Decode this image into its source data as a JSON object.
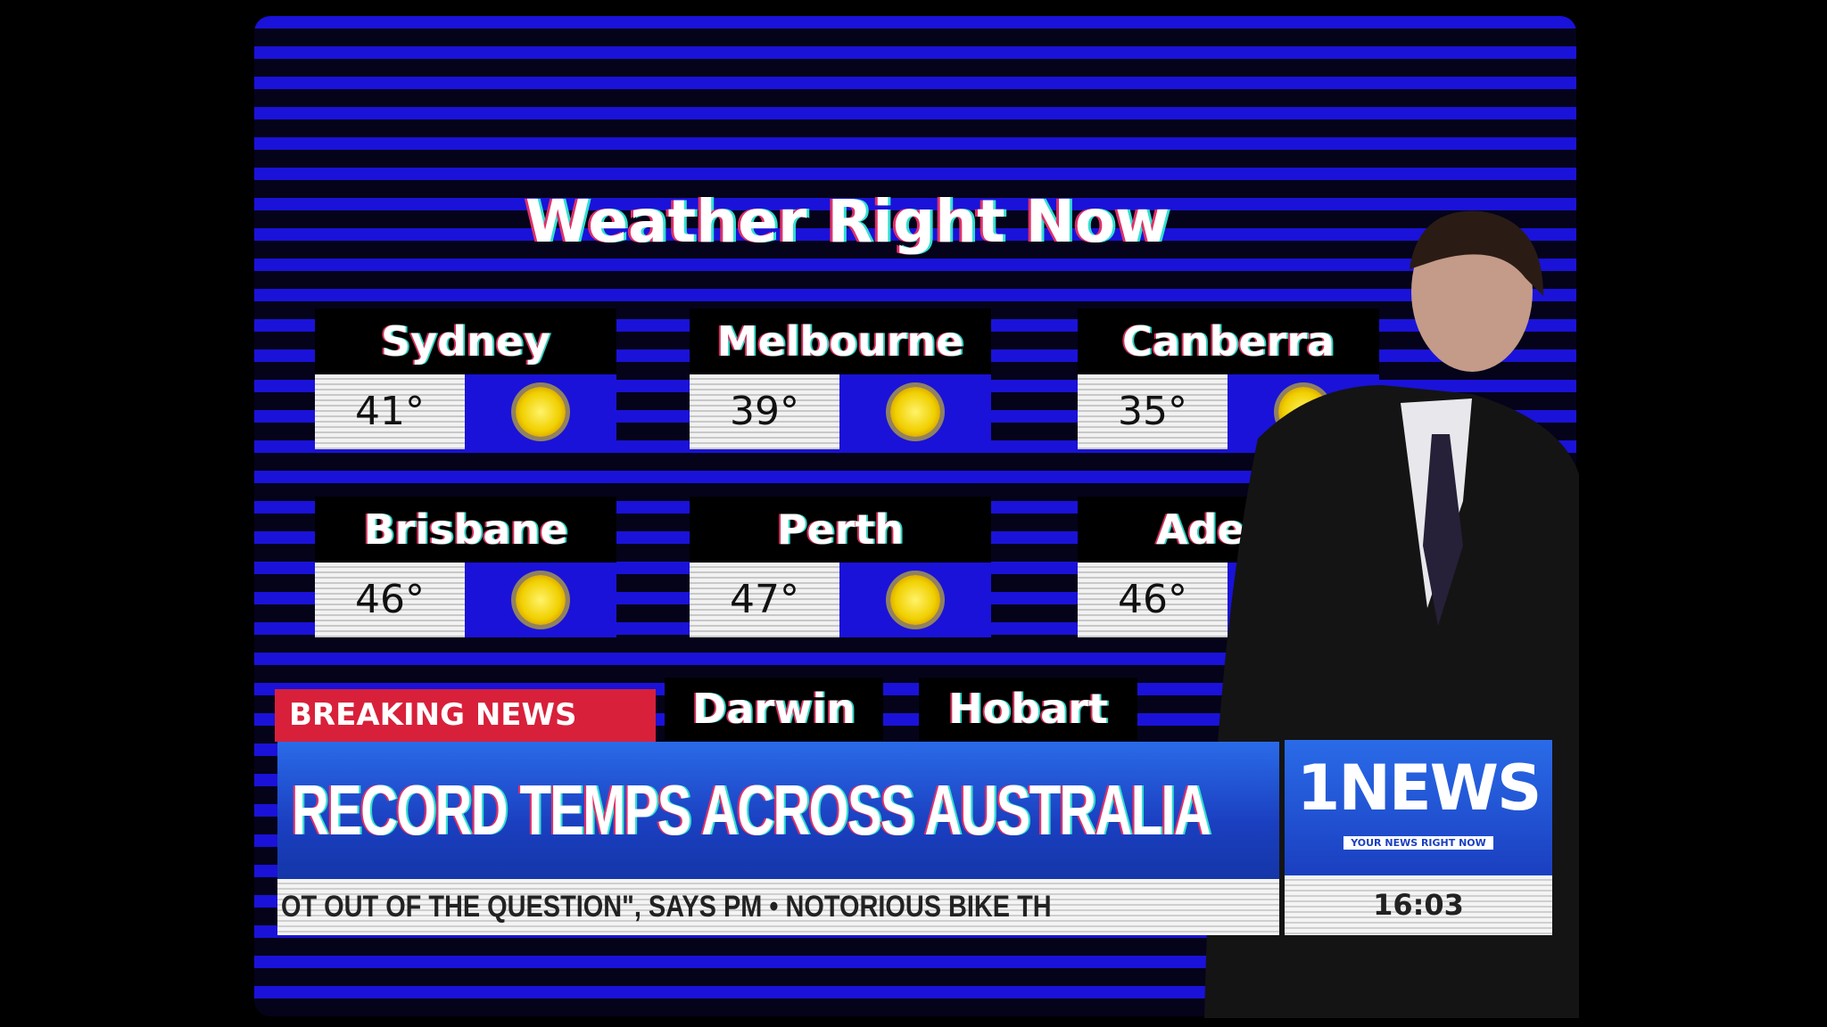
{
  "title": "Weather Right Now",
  "cities": [
    {
      "name": "Sydney",
      "temp": "41°",
      "icon": "sun-icon"
    },
    {
      "name": "Melbourne",
      "temp": "39°",
      "icon": "sun-icon"
    },
    {
      "name": "Canberra",
      "temp": "35°",
      "icon": "sun-icon"
    },
    {
      "name": "Brisbane",
      "temp": "46°",
      "icon": "sun-icon"
    },
    {
      "name": "Perth",
      "temp": "47°",
      "icon": "sun-icon"
    },
    {
      "name": "Adelai",
      "temp": "46°",
      "icon": "sun-icon"
    },
    {
      "name": "Darwin"
    },
    {
      "name": "Hobart"
    }
  ],
  "breaking": "BREAKING NEWS",
  "headline": "RECORD TEMPS ACROSS AUSTRALIA",
  "logo": {
    "name": "1NEWS",
    "tagline": "YOUR NEWS RIGHT NOW"
  },
  "ticker": "OT OUT OF THE QUESTION\", SAYS PM • NOTORIOUS BIKE TH",
  "time": "16:03",
  "colors": {
    "background_blue": "#1a12d8",
    "breaking_red": "#d8203a",
    "banner_blue": "#1a3fc0"
  }
}
